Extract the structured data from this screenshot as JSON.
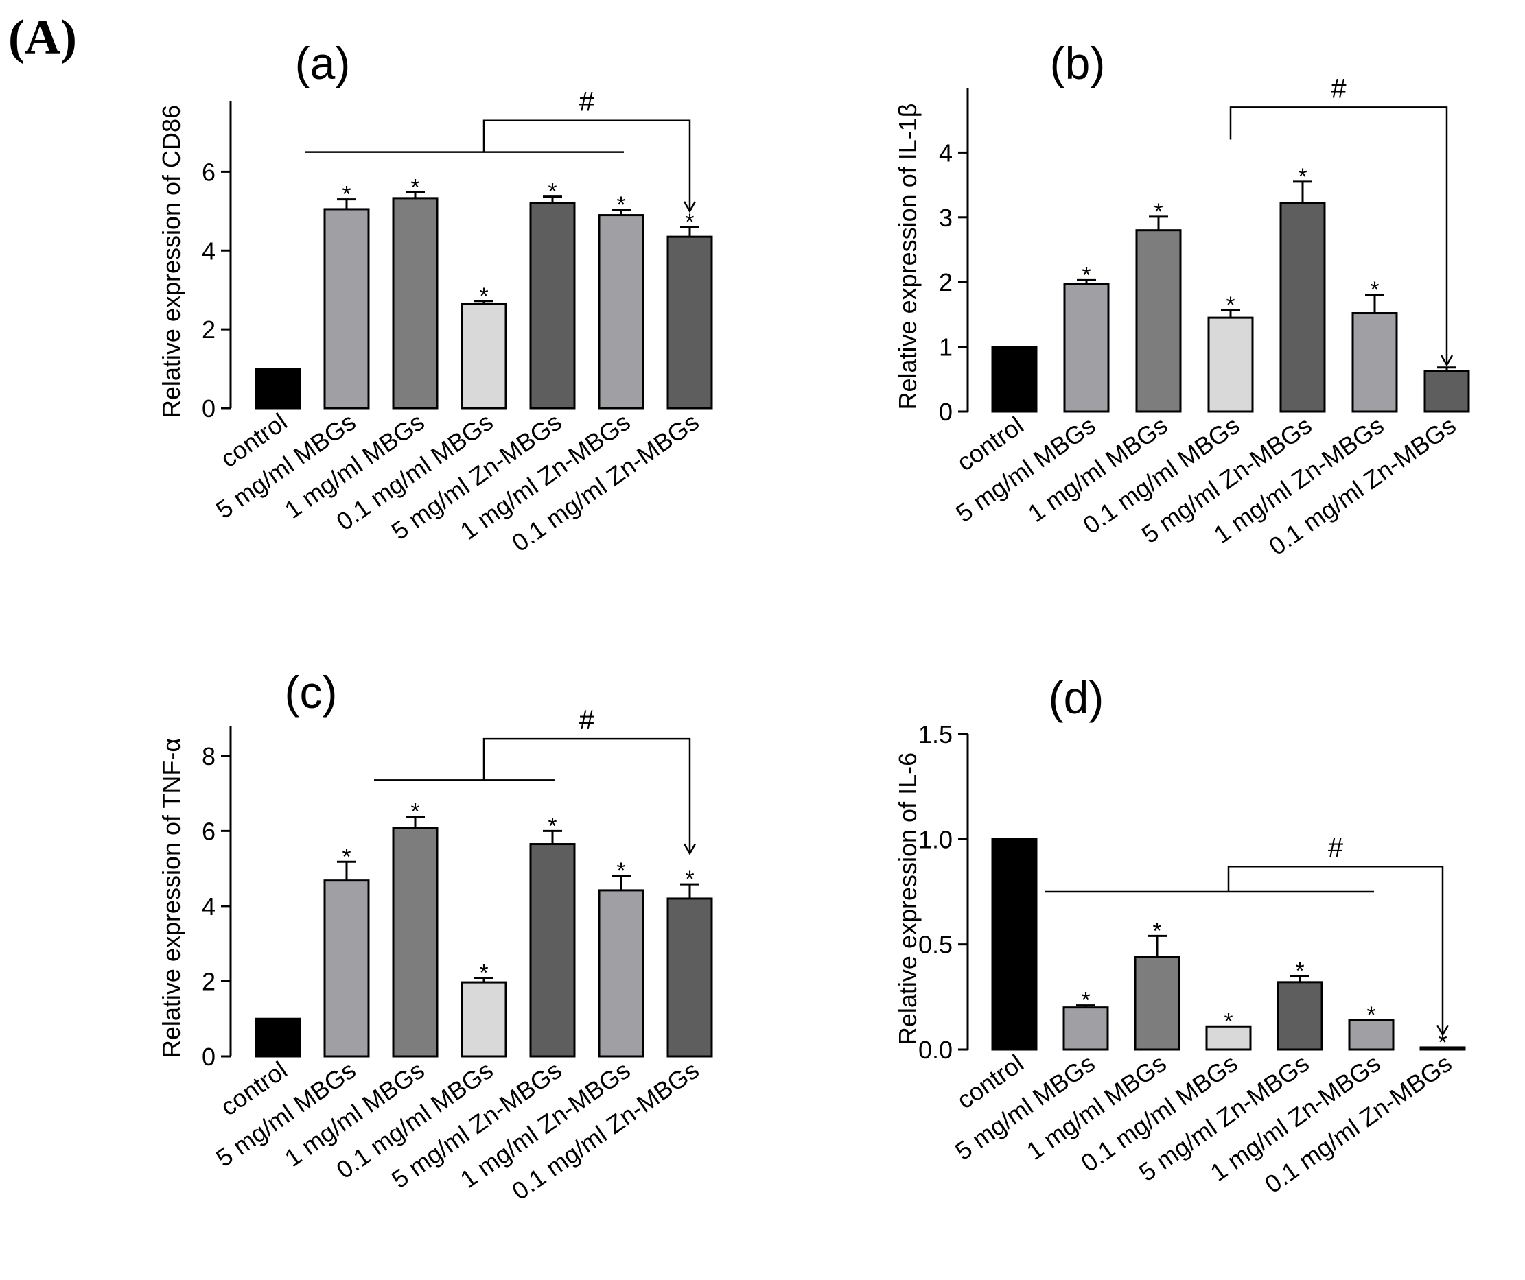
{
  "figure_label": "(A)",
  "colors": {
    "control": "#000000",
    "mbg": "#a0a0a4",
    "mbg_mid": "#7d7d7d",
    "light": "#d9d9d9",
    "zn_dark": "#5e5e5e",
    "stroke": "#000000"
  },
  "chart_data": [
    {
      "type": "bar",
      "panel_label": "(a)",
      "ylabel": "Relative expression of  CD86",
      "categories": [
        "control",
        "5 mg/ml MBGs",
        "1 mg/ml MBGs",
        "0.1 mg/ml MBGs",
        "5 mg/ml Zn-MBGs",
        "1 mg/ml Zn-MBGs",
        "0.1 mg/ml Zn-MBGs"
      ],
      "values": [
        1.0,
        5.05,
        5.33,
        2.65,
        5.2,
        4.9,
        4.35
      ],
      "errors": [
        0.0,
        0.25,
        0.15,
        0.07,
        0.17,
        0.13,
        0.25
      ],
      "color_keys": [
        "control",
        "mbg",
        "mbg_mid",
        "light",
        "zn_dark",
        "mbg",
        "zn_dark"
      ],
      "significance": [
        "",
        "*",
        "*",
        "*",
        "*",
        "*",
        "*"
      ],
      "ylim": [
        0,
        7.8
      ],
      "yticks": [
        0,
        2,
        4,
        6
      ],
      "yticklabels": [
        "0",
        "2",
        "4",
        "6"
      ],
      "bracket": {
        "line_from": 1,
        "line_to": 5,
        "line_level": 6.5,
        "top_level": 7.3,
        "target": 6,
        "target_level": 5.0,
        "label": "#"
      }
    },
    {
      "type": "bar",
      "panel_label": "(b)",
      "ylabel": "Relative expression of  IL-1β",
      "categories": [
        "control",
        "5 mg/ml MBGs",
        "1 mg/ml MBGs",
        "0.1 mg/ml MBGs",
        "5 mg/ml Zn-MBGs",
        "1 mg/ml Zn-MBGs",
        "0.1 mg/ml Zn-MBGs"
      ],
      "values": [
        1.0,
        1.97,
        2.8,
        1.45,
        3.22,
        1.52,
        0.62
      ],
      "errors": [
        0.0,
        0.06,
        0.21,
        0.12,
        0.33,
        0.28,
        0.06
      ],
      "color_keys": [
        "control",
        "mbg",
        "mbg_mid",
        "light",
        "zn_dark",
        "mbg",
        "zn_dark"
      ],
      "significance": [
        "",
        "*",
        "*",
        "*",
        "*",
        "*",
        ""
      ],
      "ylim": [
        0,
        5.0
      ],
      "yticks": [
        0,
        1,
        2,
        3,
        4
      ],
      "yticklabels": [
        "0",
        "1",
        "2",
        "3",
        "4"
      ],
      "bracket": {
        "line_from": 3,
        "line_to": 3,
        "line_level": 4.2,
        "top_level": 4.7,
        "target": 6,
        "target_level": 0.72,
        "label": "#"
      }
    },
    {
      "type": "bar",
      "panel_label": "(c)",
      "ylabel": "Relative expression of  TNF-α",
      "categories": [
        "control",
        "5 mg/ml MBGs",
        "1 mg/ml MBGs",
        "0.1 mg/ml MBGs",
        "5 mg/ml Zn-MBGs",
        "1 mg/ml Zn-MBGs",
        "0.1 mg/ml Zn-MBGs"
      ],
      "values": [
        1.0,
        4.68,
        6.08,
        1.97,
        5.65,
        4.42,
        4.2
      ],
      "errors": [
        0.0,
        0.5,
        0.3,
        0.12,
        0.35,
        0.38,
        0.38
      ],
      "color_keys": [
        "control",
        "mbg",
        "mbg_mid",
        "light",
        "zn_dark",
        "mbg",
        "zn_dark"
      ],
      "significance": [
        "",
        "*",
        "*",
        "*",
        "*",
        "*",
        "*"
      ],
      "ylim": [
        0,
        8.8
      ],
      "yticks": [
        0,
        2,
        4,
        6,
        8
      ],
      "yticklabels": [
        "0",
        "2",
        "4",
        "6",
        "8"
      ],
      "bracket": {
        "line_from": 2,
        "line_to": 4,
        "line_level": 7.35,
        "top_level": 8.45,
        "target": 6,
        "target_level": 5.4,
        "label": "#"
      }
    },
    {
      "type": "bar",
      "panel_label": "(d)",
      "ylabel": "Relative expression of   IL-6",
      "categories": [
        "control",
        "5 mg/ml MBGs",
        "1 mg/ml MBGs",
        "0.1 mg/ml MBGs",
        "5 mg/ml Zn-MBGs",
        "1 mg/ml Zn-MBGs",
        "0.1 mg/ml Zn-MBGs"
      ],
      "values": [
        1.0,
        0.2,
        0.44,
        0.11,
        0.32,
        0.14,
        0.01
      ],
      "errors": [
        0.0,
        0.01,
        0.1,
        0.0,
        0.03,
        0.0,
        0.0
      ],
      "color_keys": [
        "control",
        "mbg",
        "mbg_mid",
        "light",
        "zn_dark",
        "mbg",
        "zn_dark"
      ],
      "significance": [
        "",
        "*",
        "*",
        "*",
        "*",
        "*",
        "*"
      ],
      "ylim": [
        0,
        1.5
      ],
      "yticks": [
        0,
        0.5,
        1,
        1.5
      ],
      "yticklabels": [
        "0.0",
        "0.5",
        "1.0",
        "1.5"
      ],
      "bracket": {
        "line_from": 1,
        "line_to": 5,
        "line_level": 0.75,
        "top_level": 0.87,
        "target": 6,
        "target_level": 0.07,
        "label": "#"
      }
    }
  ]
}
